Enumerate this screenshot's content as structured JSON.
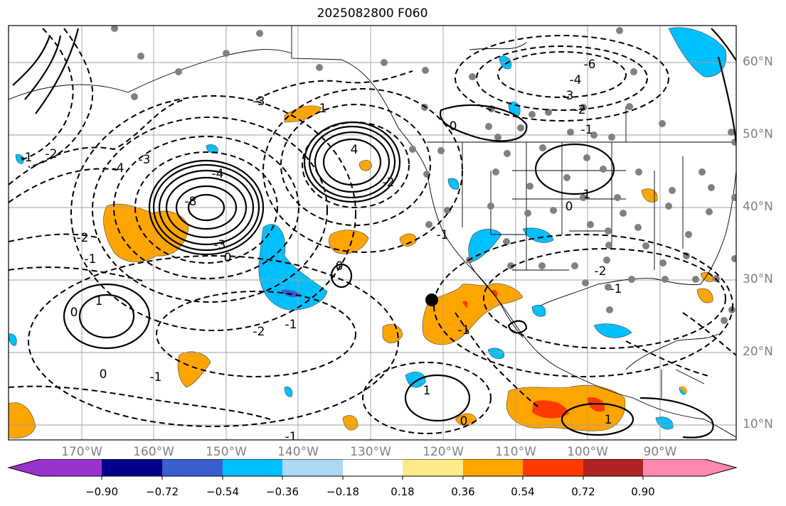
{
  "title": "2025082800 F060",
  "map": {
    "lat_ticks": [
      "60°N",
      "50°N",
      "40°N",
      "30°N",
      "20°N",
      "10°N"
    ],
    "lon_ticks": [
      "170°W",
      "160°W",
      "150°W",
      "140°W",
      "130°W",
      "120°W",
      "110°W",
      "100°W",
      "90°W"
    ],
    "contour_labels": [
      {
        "text": "4",
        "kind": "solid"
      },
      {
        "text": "-8",
        "kind": "solid"
      },
      {
        "text": "-4",
        "kind": "solid"
      },
      {
        "text": "-3",
        "kind": "solid"
      },
      {
        "text": "-3",
        "kind": "dashed"
      },
      {
        "text": "-2",
        "kind": "dashed"
      },
      {
        "text": "-1",
        "kind": "dashed"
      },
      {
        "text": "0",
        "kind": "dashed"
      },
      {
        "text": "-4",
        "kind": "dashed"
      },
      {
        "text": "-3",
        "kind": "dashed"
      },
      {
        "text": "-2",
        "kind": "dashed"
      },
      {
        "text": "-1",
        "kind": "dashed"
      },
      {
        "text": "0",
        "kind": "solid"
      },
      {
        "text": "1",
        "kind": "solid"
      },
      {
        "text": "-2",
        "kind": "dashed"
      },
      {
        "text": "-1",
        "kind": "dashed"
      },
      {
        "text": "0",
        "kind": "solid"
      },
      {
        "text": "-1",
        "kind": "dashed"
      },
      {
        "text": "1",
        "kind": "solid"
      },
      {
        "text": "-6",
        "kind": "dashed"
      },
      {
        "text": "-4",
        "kind": "dashed"
      },
      {
        "text": "-3",
        "kind": "dashed"
      },
      {
        "text": "-2",
        "kind": "dashed"
      },
      {
        "text": "-1",
        "kind": "dashed"
      },
      {
        "text": "0",
        "kind": "solid"
      },
      {
        "text": "1",
        "kind": "solid"
      },
      {
        "text": "0",
        "kind": "solid"
      },
      {
        "text": "-2",
        "kind": "dashed"
      },
      {
        "text": "-1",
        "kind": "dashed"
      },
      {
        "text": "1",
        "kind": "solid"
      },
      {
        "text": "-1",
        "kind": "dashed"
      },
      {
        "text": "1",
        "kind": "solid"
      },
      {
        "text": "-1",
        "kind": "dashed"
      },
      {
        "text": "-2",
        "kind": "dashed"
      },
      {
        "text": "0",
        "kind": "solid"
      },
      {
        "text": "-1",
        "kind": "dashed"
      },
      {
        "text": "0",
        "kind": "solid"
      }
    ]
  },
  "colorbar": {
    "labels": [
      "−0.90",
      "−0.72",
      "−0.54",
      "−0.36",
      "−0.18",
      "0.18",
      "0.36",
      "0.54",
      "0.72",
      "0.90"
    ],
    "colors": [
      "#9932cc",
      "#00008b",
      "#3a5fcd",
      "#00bfff",
      "#add8f5",
      "#ffffff",
      "#ffeb8a",
      "#ffa500",
      "#ff3a00",
      "#b22222",
      "#ff88b0"
    ],
    "extend": "both"
  }
}
